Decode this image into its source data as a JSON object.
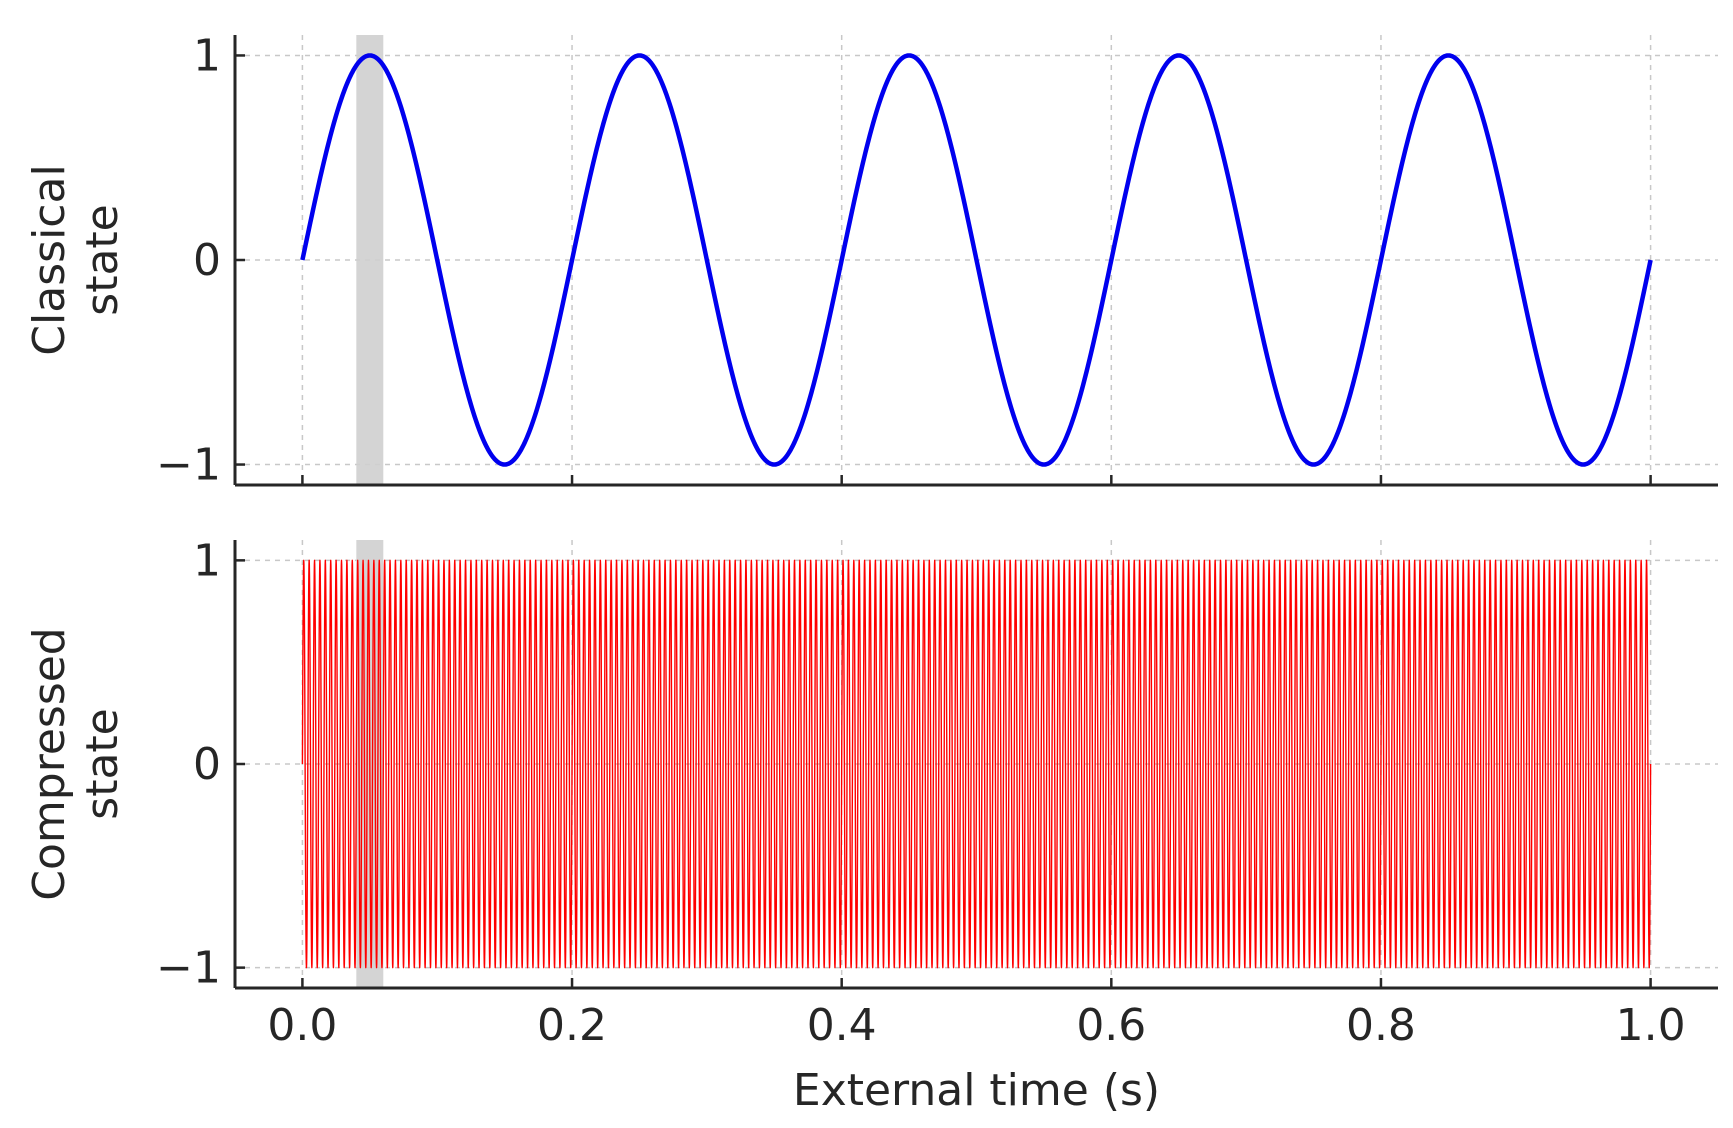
{
  "chart_data": [
    {
      "type": "line",
      "panel": "top",
      "ylabel": [
        "Classical",
        "state"
      ],
      "xlabel": "",
      "xlim": [
        -0.05,
        1.05
      ],
      "ylim": [
        -1.1,
        1.1
      ],
      "yticks": [
        -1,
        0,
        1
      ],
      "ytick_labels": [
        "−1",
        "0",
        "1"
      ],
      "xticks": [
        0.0,
        0.2,
        0.4,
        0.6,
        0.8,
        1.0
      ],
      "grid": true,
      "highlight_band": [
        0.04,
        0.06
      ],
      "series": [
        {
          "function": "sin",
          "amplitude": 1,
          "frequency_hz": 5,
          "x_range": [
            0.0,
            1.0
          ],
          "color": "#0000ee"
        }
      ]
    },
    {
      "type": "line",
      "panel": "bottom",
      "ylabel": [
        "Compressed",
        "state"
      ],
      "xlabel": "External time (s)",
      "xlim": [
        -0.05,
        1.05
      ],
      "ylim": [
        -1.1,
        1.1
      ],
      "yticks": [
        -1,
        0,
        1
      ],
      "ytick_labels": [
        "−1",
        "0",
        "1"
      ],
      "xticks": [
        0.0,
        0.2,
        0.4,
        0.6,
        0.8,
        1.0
      ],
      "xtick_labels": [
        "0.0",
        "0.2",
        "0.4",
        "0.6",
        "0.8",
        "1.0"
      ],
      "grid": true,
      "highlight_band": [
        0.04,
        0.06
      ],
      "series": [
        {
          "function": "sin",
          "amplitude": 1,
          "frequency_hz": 250,
          "x_range": [
            0.0,
            1.0
          ],
          "color": "#ff0000"
        }
      ]
    }
  ]
}
